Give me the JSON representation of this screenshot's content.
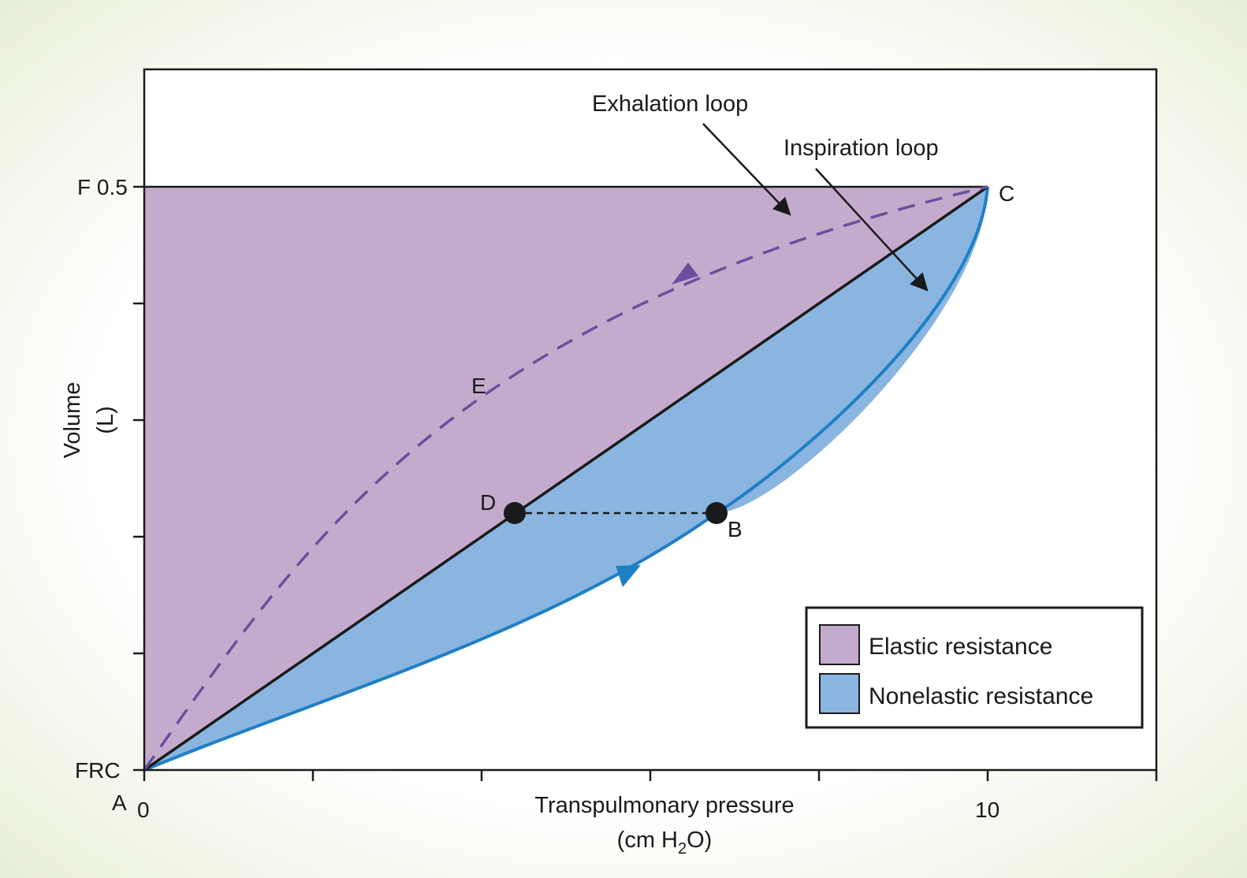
{
  "diagram": {
    "x_axis": {
      "label_line1": "Transpulmonary pressure",
      "label_line2_prefix": "(cm H",
      "label_line2_sub": "2",
      "label_line2_suffix": "O)",
      "ticks": [
        "0",
        "10"
      ]
    },
    "y_axis": {
      "label_line1": "Volume",
      "label_line2": "(L)",
      "top_tick": "F 0.5",
      "bottom_tick": "FRC"
    },
    "points": {
      "A": "A",
      "B": "B",
      "C": "C",
      "D": "D",
      "E": "E"
    },
    "annotations": {
      "exhalation": "Exhalation loop",
      "inspiration": "Inspiration loop"
    },
    "legend": {
      "elastic": "Elastic resistance",
      "nonelastic": "Nonelastic resistance"
    },
    "colors": {
      "elastic": "#c4abcd",
      "nonelastic": "#89b5e0",
      "inspiration_curve": "#1f7fc4",
      "exhalation_curve": "#6a4f9e",
      "frame": "#1a1a1a",
      "border_glow": "#e2ebcf"
    }
  }
}
